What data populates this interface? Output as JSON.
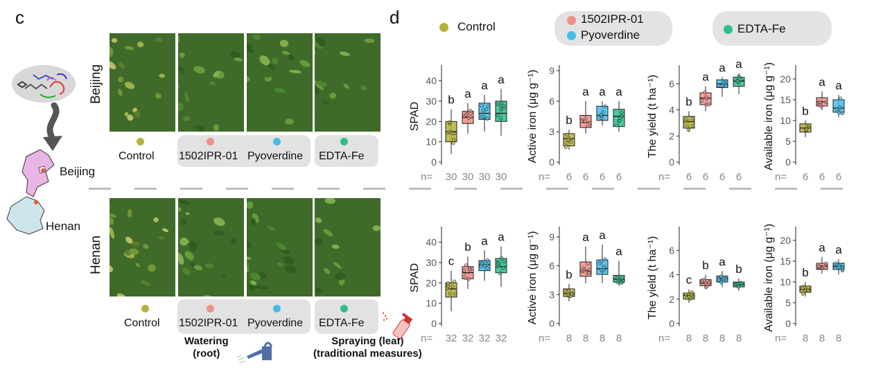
{
  "panel_c_label": "c",
  "panel_d_label": "d",
  "rows": [
    {
      "site": "Beijing",
      "treatments": [
        "Control",
        "1502IPR-01",
        "Pyoverdine",
        "EDTA-Fe"
      ]
    },
    {
      "site": "Henan",
      "treatments": [
        "Control",
        "1502IPR-01",
        "Pyoverdine",
        "EDTA-Fe"
      ]
    }
  ],
  "map_labels": {
    "north": "Beijing",
    "south": "Henan"
  },
  "methods": {
    "root": [
      "Watering",
      "(root)"
    ],
    "leaf": [
      "Spraying (leaf)",
      "(traditional measures)"
    ]
  },
  "legend": [
    {
      "name": "Control",
      "color": "#b5b239"
    },
    {
      "name": "1502IPR-01",
      "color": "#f08f88"
    },
    {
      "name": "Pyoverdine",
      "color": "#45bde8"
    },
    {
      "name": "EDTA-Fe",
      "color": "#2ebd8e"
    }
  ],
  "colors": {
    "Control": "#b5b239",
    "1502IPR-01": "#f08f88",
    "Pyoverdine": "#45bde8",
    "EDTA-Fe": "#2ebd8e"
  },
  "chart_data": [
    {
      "type": "box",
      "site": "Beijing",
      "ylabel": "SPAD",
      "yticks": [
        "0",
        "10",
        "20",
        "30",
        "40"
      ],
      "ylim": [
        0,
        45
      ],
      "groups": [
        {
          "group": "Control",
          "q1": 10,
          "median": 15,
          "q3": 20,
          "min": 4,
          "max": 26,
          "sig": "b",
          "n": "30"
        },
        {
          "group": "1502IPR-01",
          "q1": 19,
          "median": 22,
          "q3": 25,
          "min": 14,
          "max": 29,
          "sig": "a",
          "n": "30"
        },
        {
          "group": "Pyoverdine",
          "q1": 21,
          "median": 24,
          "q3": 29,
          "min": 15,
          "max": 33,
          "sig": "a",
          "n": "30"
        },
        {
          "group": "EDTA-Fe",
          "q1": 20,
          "median": 24,
          "q3": 30,
          "min": 13,
          "max": 36,
          "sig": "a",
          "n": "30"
        }
      ]
    },
    {
      "type": "box",
      "site": "Beijing",
      "ylabel": "Active iron (μg g⁻¹)",
      "yticks": [
        "0",
        "3",
        "6",
        "9"
      ],
      "ylim": [
        0,
        9
      ],
      "groups": [
        {
          "group": "Control",
          "q1": 1.6,
          "median": 2.3,
          "q3": 2.8,
          "min": 1.2,
          "max": 3.2,
          "sig": "b",
          "n": "6"
        },
        {
          "group": "1502IPR-01",
          "q1": 3.4,
          "median": 3.9,
          "q3": 4.6,
          "min": 2.8,
          "max": 6.0,
          "sig": "a",
          "n": "6"
        },
        {
          "group": "Pyoverdine",
          "q1": 4.1,
          "median": 4.6,
          "q3": 5.5,
          "min": 3.6,
          "max": 6.0,
          "sig": "a",
          "n": "6"
        },
        {
          "group": "EDTA-Fe",
          "q1": 3.5,
          "median": 4.5,
          "q3": 5.2,
          "min": 3.0,
          "max": 6.0,
          "sig": "a",
          "n": "6"
        }
      ]
    },
    {
      "type": "box",
      "site": "Beijing",
      "ylabel": "The yield (t ha⁻¹)",
      "yticks": [
        "0",
        "2",
        "4",
        "6"
      ],
      "ylim": [
        0,
        7
      ],
      "groups": [
        {
          "group": "Control",
          "q1": 2.6,
          "median": 3.1,
          "q3": 3.5,
          "min": 2.3,
          "max": 3.9,
          "sig": "b",
          "n": "6"
        },
        {
          "group": "1502IPR-01",
          "q1": 4.4,
          "median": 4.9,
          "q3": 5.3,
          "min": 3.9,
          "max": 5.8,
          "sig": "a",
          "n": "6"
        },
        {
          "group": "Pyoverdine",
          "q1": 5.7,
          "median": 6.0,
          "q3": 6.3,
          "min": 5.0,
          "max": 6.5,
          "sig": "a",
          "n": "6"
        },
        {
          "group": "EDTA-Fe",
          "q1": 5.8,
          "median": 6.2,
          "q3": 6.5,
          "min": 5.2,
          "max": 6.8,
          "sig": "a",
          "n": "6"
        }
      ]
    },
    {
      "type": "box",
      "site": "Beijing",
      "ylabel": "Available iron (μg g⁻¹)",
      "yticks": [
        "0",
        "5",
        "10",
        "15",
        "20"
      ],
      "ylim": [
        0,
        22
      ],
      "groups": [
        {
          "group": "Control",
          "q1": 7.2,
          "median": 8.2,
          "q3": 9.2,
          "min": 6.0,
          "max": 10.0,
          "sig": "b",
          "n": "6"
        },
        {
          "group": "1502IPR-01",
          "q1": 13.5,
          "median": 14.5,
          "q3": 15.5,
          "min": 12.5,
          "max": 17.0,
          "sig": "a",
          "n": "6"
        },
        {
          "group": "Pyoverdine",
          "q1": 12.0,
          "median": 13.0,
          "q3": 15.0,
          "min": 10.8,
          "max": 16.2,
          "sig": "a",
          "n": "6"
        }
      ]
    },
    {
      "type": "box",
      "site": "Henan",
      "ylabel": "SPAD",
      "yticks": [
        "0",
        "10",
        "20",
        "30",
        "40"
      ],
      "ylim": [
        0,
        45
      ],
      "groups": [
        {
          "group": "Control",
          "q1": 13,
          "median": 17,
          "q3": 20,
          "min": 6,
          "max": 26,
          "sig": "c",
          "n": "32"
        },
        {
          "group": "1502IPR-01",
          "q1": 22,
          "median": 25,
          "q3": 28,
          "min": 17,
          "max": 33,
          "sig": "b",
          "n": "32"
        },
        {
          "group": "Pyoverdine",
          "q1": 26,
          "median": 29,
          "q3": 31,
          "min": 21,
          "max": 36,
          "sig": "a",
          "n": "32"
        },
        {
          "group": "EDTA-Fe",
          "q1": 25,
          "median": 28,
          "q3": 32,
          "min": 18,
          "max": 38,
          "sig": "a",
          "n": "32"
        }
      ]
    },
    {
      "type": "box",
      "site": "Henan",
      "ylabel": "Active iron (μg g⁻¹)",
      "yticks": [
        "0",
        "3",
        "6",
        "9"
      ],
      "ylim": [
        0,
        9.5
      ],
      "groups": [
        {
          "group": "Control",
          "q1": 2.8,
          "median": 3.1,
          "q3": 3.6,
          "min": 2.3,
          "max": 4.1,
          "sig": "b",
          "n": "8"
        },
        {
          "group": "1502IPR-01",
          "q1": 4.9,
          "median": 5.5,
          "q3": 6.4,
          "min": 4.2,
          "max": 8.0,
          "sig": "a",
          "n": "8"
        },
        {
          "group": "Pyoverdine",
          "q1": 5.1,
          "median": 5.7,
          "q3": 6.6,
          "min": 4.2,
          "max": 8.2,
          "sig": "a",
          "n": "8"
        },
        {
          "group": "EDTA-Fe",
          "q1": 4.3,
          "median": 4.6,
          "q3": 5.0,
          "min": 3.9,
          "max": 6.5,
          "sig": "a",
          "n": "8"
        }
      ]
    },
    {
      "type": "box",
      "site": "Henan",
      "ylabel": "The yield (t ha⁻¹)",
      "yticks": [
        "0",
        "2",
        "4",
        "6"
      ],
      "ylim": [
        0,
        7.5
      ],
      "groups": [
        {
          "group": "Control",
          "q1": 2.0,
          "median": 2.3,
          "q3": 2.5,
          "min": 1.7,
          "max": 2.8,
          "sig": "c",
          "n": "8"
        },
        {
          "group": "1502IPR-01",
          "q1": 3.1,
          "median": 3.3,
          "q3": 3.6,
          "min": 2.8,
          "max": 4.0,
          "sig": "b",
          "n": "8"
        },
        {
          "group": "Pyoverdine",
          "q1": 3.4,
          "median": 3.7,
          "q3": 3.9,
          "min": 3.0,
          "max": 4.3,
          "sig": "a",
          "n": "8"
        },
        {
          "group": "EDTA-Fe",
          "q1": 3.0,
          "median": 3.2,
          "q3": 3.4,
          "min": 2.7,
          "max": 3.7,
          "sig": "b",
          "n": "8"
        }
      ]
    },
    {
      "type": "box",
      "site": "Henan",
      "ylabel": "Available iron (μg g⁻¹)",
      "yticks": [
        "0",
        "5",
        "10",
        "15",
        "20"
      ],
      "ylim": [
        0,
        22
      ],
      "groups": [
        {
          "group": "Control",
          "q1": 7.5,
          "median": 8.2,
          "q3": 9.0,
          "min": 6.5,
          "max": 10.0,
          "sig": "b",
          "n": "8"
        },
        {
          "group": "1502IPR-01",
          "q1": 13.0,
          "median": 13.8,
          "q3": 14.5,
          "min": 12.0,
          "max": 16.0,
          "sig": "a",
          "n": "8"
        },
        {
          "group": "Pyoverdine",
          "q1": 13.0,
          "median": 13.8,
          "q3": 14.5,
          "min": 11.8,
          "max": 15.5,
          "sig": "a",
          "n": "8"
        }
      ]
    }
  ]
}
